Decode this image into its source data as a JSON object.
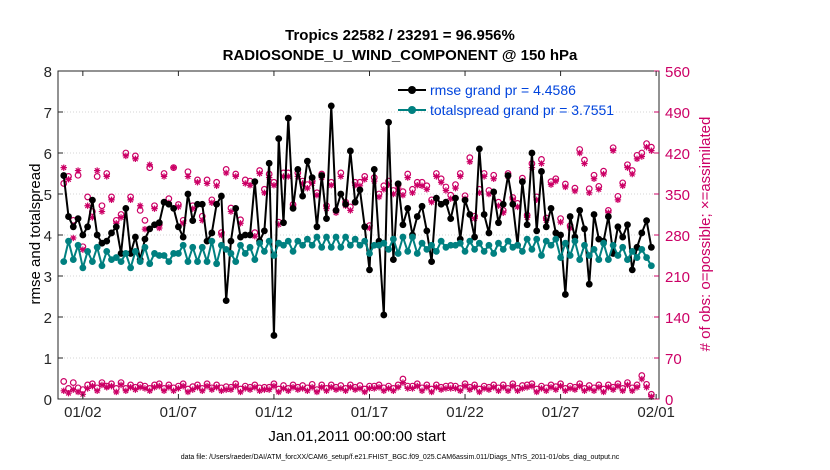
{
  "chart_data": {
    "type": "line",
    "title": "Tropics 22582 / 23291 = 96.956%",
    "subtitle": "RADIOSONDE_U_WIND_COMPONENT @ 150 hPa",
    "xlabel": "Jan.01,2011 00:00:00 start",
    "ylabel": "rmse and totalspread",
    "ylabel_right": "# of obs: o=possible; ×=assimilated",
    "footnote": "data file: /Users/raeder/DAI/ATM_forcXX/CAM6_setup/f.e21.FHIST_BGC.f09_025.CAM6assim.011/Diags_NTrS_2011-01/obs_diag_output.nc",
    "xlim": [
      0.7,
      32.15
    ],
    "ylim": [
      0,
      8
    ],
    "ylim_right": [
      0,
      560
    ],
    "x_ticks": [
      2,
      7,
      12,
      17,
      22,
      27,
      32
    ],
    "x_tick_labels": [
      "01/02",
      "01/07",
      "01/12",
      "01/17",
      "01/22",
      "01/27",
      "02/01"
    ],
    "y_ticks": [
      0,
      1,
      2,
      3,
      4,
      5,
      6,
      7,
      8
    ],
    "y_tick_labels": [
      "0",
      "1",
      "2",
      "3",
      "4",
      "5",
      "6",
      "7",
      "8"
    ],
    "y_right_ticks": [
      0,
      70,
      140,
      210,
      280,
      350,
      420,
      490,
      560
    ],
    "y_right_tick_labels": [
      "0",
      "70",
      "140",
      "210",
      "280",
      "350",
      "420",
      "490",
      "560"
    ],
    "grid": "horizontal dotted",
    "legend_position": "top-right",
    "colors": {
      "rmse": "#000000",
      "spread": "#008080",
      "counts": "#cc0066"
    },
    "legend": [
      "rmse grand pr = 4.4586",
      "totalspread grand pr = 3.7551"
    ],
    "x": [
      1.0,
      1.25,
      1.5,
      1.75,
      2.0,
      2.25,
      2.5,
      2.75,
      3.0,
      3.25,
      3.5,
      3.75,
      4.0,
      4.25,
      4.5,
      4.75,
      5.0,
      5.25,
      5.5,
      5.75,
      6.0,
      6.25,
      6.5,
      6.75,
      7.0,
      7.25,
      7.5,
      7.75,
      8.0,
      8.25,
      8.5,
      8.75,
      9.0,
      9.25,
      9.5,
      9.75,
      10.0,
      10.25,
      10.5,
      10.75,
      11.0,
      11.25,
      11.5,
      11.75,
      12.0,
      12.25,
      12.5,
      12.75,
      13.0,
      13.25,
      13.5,
      13.75,
      14.0,
      14.25,
      14.5,
      14.75,
      15.0,
      15.25,
      15.5,
      15.75,
      16.0,
      16.25,
      16.5,
      16.75,
      17.0,
      17.25,
      17.5,
      17.75,
      18.0,
      18.25,
      18.5,
      18.75,
      19.0,
      19.25,
      19.5,
      19.75,
      20.0,
      20.25,
      20.5,
      20.75,
      21.0,
      21.25,
      21.5,
      21.75,
      22.0,
      22.25,
      22.5,
      22.75,
      23.0,
      23.25,
      23.5,
      23.75,
      24.0,
      24.25,
      24.5,
      24.75,
      25.0,
      25.25,
      25.5,
      25.75,
      26.0,
      26.25,
      26.5,
      26.75,
      27.0,
      27.25,
      27.5,
      27.75,
      28.0,
      28.25,
      28.5,
      28.75,
      29.0,
      29.25,
      29.5,
      29.75,
      30.0,
      30.25,
      30.5,
      30.75,
      31.0,
      31.25,
      31.5,
      31.75
    ],
    "series": [
      {
        "name": "rmse",
        "values": [
          5.45,
          4.45,
          4.2,
          4.4,
          4.0,
          4.2,
          4.85,
          4.0,
          3.8,
          3.85,
          4.05,
          4.2,
          3.55,
          4.65,
          3.55,
          3.95,
          3.4,
          3.9,
          4.15,
          4.25,
          4.3,
          4.8,
          4.75,
          4.65,
          4.2,
          3.95,
          5.0,
          4.35,
          4.75,
          4.75,
          3.85,
          4.05,
          4.75,
          4.95,
          2.4,
          3.85,
          4.65,
          3.95,
          4.0,
          4.0,
          5.3,
          3.85,
          4.1,
          5.75,
          1.55,
          6.35,
          4.3,
          6.85,
          4.65,
          5.6,
          4.95,
          5.8,
          5.4,
          4.2,
          5.45,
          4.4,
          7.15,
          4.6,
          5.0,
          4.75,
          6.05,
          4.8,
          5.1,
          4.2,
          3.15,
          5.6,
          3.85,
          2.05,
          6.75,
          3.4,
          5.25,
          4.25,
          4.65,
          4.0,
          4.45,
          4.7,
          4.1,
          3.35,
          4.9,
          4.75,
          4.8,
          4.4,
          4.9,
          3.9,
          4.85,
          4.5,
          3.95,
          6.1,
          4.5,
          4.05,
          5.05,
          4.3,
          4.75,
          5.45,
          4.75,
          3.75,
          5.3,
          4.25,
          6.0,
          4.1,
          5.55,
          4.2,
          4.65,
          4.05,
          4.0,
          2.55,
          4.45,
          3.95,
          4.6,
          4.15,
          2.8,
          4.5,
          3.9,
          3.85,
          4.45,
          3.55,
          4.2,
          3.95,
          4.25,
          3.15,
          3.7,
          4.05,
          4.35,
          3.7
        ]
      },
      {
        "name": "totalspread",
        "values": [
          3.35,
          3.85,
          3.4,
          3.75,
          3.2,
          3.6,
          3.35,
          3.7,
          3.25,
          3.6,
          3.4,
          3.45,
          3.35,
          3.55,
          3.2,
          3.6,
          3.35,
          3.7,
          3.3,
          3.55,
          3.5,
          3.5,
          3.35,
          3.55,
          3.55,
          3.75,
          3.35,
          3.7,
          3.35,
          3.7,
          3.35,
          3.85,
          3.3,
          3.75,
          3.65,
          3.55,
          3.35,
          3.75,
          3.55,
          3.7,
          3.4,
          3.8,
          3.6,
          3.85,
          3.5,
          3.8,
          3.75,
          3.85,
          3.6,
          3.85,
          3.75,
          3.9,
          3.75,
          3.95,
          3.7,
          3.95,
          3.7,
          3.95,
          3.7,
          3.95,
          3.75,
          3.9,
          3.75,
          3.85,
          3.55,
          3.75,
          3.75,
          3.8,
          3.65,
          3.9,
          3.55,
          3.95,
          3.6,
          3.95,
          3.55,
          3.8,
          3.65,
          3.75,
          3.6,
          3.85,
          3.7,
          3.75,
          3.75,
          3.8,
          3.6,
          3.85,
          3.65,
          3.8,
          3.6,
          3.75,
          3.55,
          3.8,
          3.65,
          3.85,
          3.7,
          3.75,
          3.6,
          3.9,
          3.65,
          3.9,
          3.5,
          3.85,
          3.75,
          3.9,
          3.45,
          3.8,
          3.5,
          3.85,
          3.4,
          3.75,
          3.5,
          3.65,
          3.4,
          3.8,
          3.4,
          3.75,
          3.5,
          3.7,
          3.4,
          3.6,
          3.45,
          3.65,
          3.45,
          3.25
        ]
      }
    ],
    "obs_counts": [
      {
        "name": "possible",
        "marker": "o",
        "values": [
          368,
          380,
          305,
          382,
          260,
          345,
          320,
          380,
          330,
          385,
          345,
          305,
          315,
          420,
          345,
          415,
          322,
          305,
          395,
          330,
          298,
          385,
          342,
          395,
          332,
          305,
          388,
          330,
          374,
          312,
          374,
          340,
          370,
          284,
          392,
          326,
          384,
          306,
          374,
          372,
          284,
          390,
          358,
          384,
          370,
          302,
          386,
          386,
          332,
          386,
          372,
          366,
          372,
          352,
          384,
          330,
          370,
          322,
          386,
          336,
          328,
          370,
          370,
          380,
          296,
          378,
          350,
          364,
          372,
          356,
          366,
          354,
          384,
          358,
          370,
          370,
          364,
          340,
          385,
          376,
          362,
          348,
          366,
          385,
          347,
          412,
          312,
          358,
          385,
          356,
          382,
          336,
          322,
          385,
          344,
          334,
          377,
          314,
          402,
          345,
          409,
          309,
          371,
          376,
          308,
          367,
          296,
          360,
          426,
          408,
          359,
          382,
          363,
          389,
          322,
          429,
          346,
          369,
          400,
          390,
          416,
          420,
          436,
          430
        ]
      },
      {
        "name": "assimilated",
        "marker": "x",
        "values": [
          395,
          375,
          275,
          390,
          255,
          330,
          310,
          390,
          320,
          380,
          340,
          300,
          310,
          415,
          340,
          410,
          330,
          290,
          400,
          325,
          292,
          380,
          335,
          395,
          328,
          300,
          380,
          325,
          370,
          305,
          368,
          335,
          364,
          280,
          386,
          320,
          380,
          300,
          368,
          365,
          278,
          385,
          352,
          378,
          365,
          298,
          380,
          380,
          328,
          380,
          368,
          360,
          368,
          348,
          378,
          325,
          365,
          318,
          380,
          330,
          322,
          365,
          364,
          375,
          292,
          372,
          345,
          358,
          366,
          350,
          360,
          348,
          378,
          352,
          365,
          364,
          358,
          336,
          380,
          370,
          356,
          342,
          360,
          380,
          342,
          405,
          308,
          352,
          380,
          350,
          376,
          330,
          318,
          380,
          340,
          328,
          372,
          310,
          395,
          340,
          402,
          305,
          366,
          372,
          302,
          362,
          292,
          355,
          420,
          402,
          352,
          376,
          358,
          384,
          318,
          424,
          340,
          364,
          395,
          384,
          410,
          414,
          430,
          424
        ]
      },
      {
        "name": "rejected-possible",
        "marker": "o",
        "values": [
          30,
          18,
          28,
          19,
          16,
          24,
          26,
          19,
          28,
          22,
          26,
          18,
          28,
          18,
          24,
          20,
          24,
          22,
          18,
          24,
          26,
          18,
          24,
          19,
          22,
          26,
          17,
          21,
          24,
          18,
          26,
          19,
          24,
          19,
          21,
          20,
          26,
          17,
          22,
          20,
          24,
          19,
          20,
          20,
          26,
          17,
          23,
          18,
          24,
          20,
          23,
          19,
          25,
          16,
          24,
          18,
          24,
          20,
          23,
          18,
          24,
          20,
          23,
          17,
          22,
          22,
          24,
          19,
          22,
          18,
          24,
          34,
          22,
          22,
          26,
          19,
          24,
          17,
          24,
          20,
          22,
          23,
          22,
          18,
          26,
          20,
          24,
          17,
          22,
          20,
          24,
          19,
          24,
          18,
          26,
          18,
          23,
          24,
          26,
          17,
          22,
          19,
          24,
          21,
          26,
          18,
          22,
          20,
          26,
          18,
          23,
          19,
          24,
          17,
          24,
          20,
          26,
          18,
          28,
          19,
          24,
          40,
          25,
          8
        ]
      },
      {
        "name": "rejected-assimilated",
        "marker": "x",
        "values": [
          14,
          10,
          16,
          12,
          8,
          18,
          22,
          14,
          24,
          20,
          22,
          12,
          24,
          14,
          20,
          16,
          20,
          18,
          14,
          20,
          22,
          14,
          20,
          14,
          18,
          22,
          12,
          16,
          20,
          14,
          22,
          16,
          20,
          14,
          16,
          16,
          22,
          12,
          18,
          16,
          20,
          14,
          16,
          16,
          22,
          12,
          18,
          14,
          20,
          16,
          18,
          14,
          20,
          12,
          20,
          14,
          20,
          16,
          18,
          14,
          20,
          16,
          18,
          12,
          18,
          18,
          20,
          14,
          18,
          14,
          20,
          28,
          18,
          18,
          22,
          14,
          20,
          12,
          20,
          16,
          18,
          18,
          18,
          14,
          22,
          16,
          20,
          12,
          18,
          16,
          20,
          14,
          20,
          14,
          22,
          14,
          18,
          20,
          22,
          12,
          18,
          14,
          20,
          16,
          22,
          14,
          18,
          16,
          22,
          14,
          18,
          14,
          20,
          12,
          20,
          16,
          22,
          14,
          24,
          14,
          20,
          34,
          20,
          4
        ]
      }
    ]
  }
}
